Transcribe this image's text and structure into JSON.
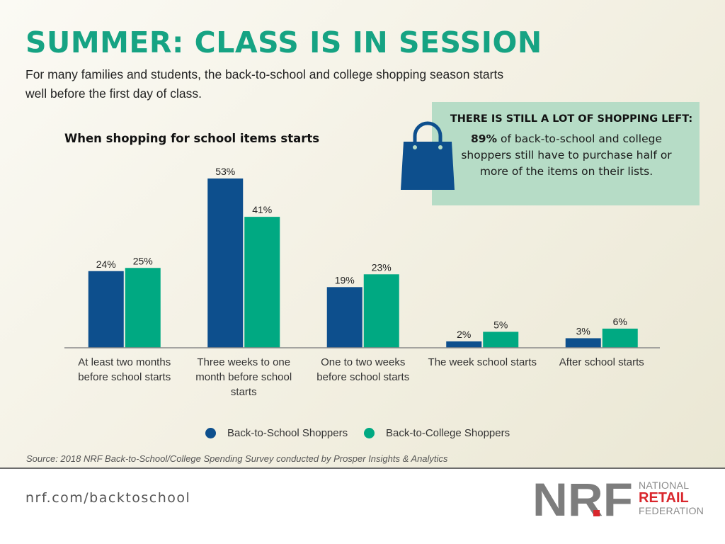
{
  "header": {
    "title": "SUMMER: CLASS IS IN SESSION",
    "subtitle": "For many families and students, the back-to-school and college shopping season starts well before the first day of class."
  },
  "callout": {
    "heading": "THERE IS STILL A LOT OF SHOPPING LEFT:",
    "highlight": "89%",
    "body": " of back-to-school and college shoppers still have to purchase half or more of the items on their lists.",
    "icon": "shopping-bag-icon",
    "background": "#b6dcc6"
  },
  "chart_data": {
    "type": "bar",
    "title": "When shopping for school items starts",
    "categories": [
      "At least two months before school starts",
      "Three weeks to one month before school starts",
      "One to two weeks before school starts",
      "The week school starts",
      "After school starts"
    ],
    "series": [
      {
        "name": "Back-to-School Shoppers",
        "values": [
          24,
          53,
          19,
          2,
          3
        ],
        "labels": [
          "24%",
          "53%",
          "19%",
          "2%",
          "3%"
        ],
        "color": "#0d4f8d"
      },
      {
        "name": "Back-to-College Shoppers",
        "values": [
          25,
          41,
          23,
          5,
          6
        ],
        "labels": [
          "25%",
          "41%",
          "23%",
          "5%",
          "6%"
        ],
        "color": "#00a982"
      }
    ],
    "ylim": [
      0,
      53
    ],
    "grid": false,
    "legend_position": "bottom"
  },
  "source": "Source: 2018 NRF Back-to-School/College Spending Survey conducted by Prosper Insights & Analytics",
  "footer": {
    "url": "nrf.com/backtoschool",
    "logo": {
      "mark": "NRF",
      "line1": "NATIONAL",
      "line2": "RETAIL",
      "line3": "FEDERATION"
    }
  },
  "colors": {
    "title": "#16a383",
    "brand_red": "#d9262c",
    "logo_gray": "#7d7d7d"
  }
}
